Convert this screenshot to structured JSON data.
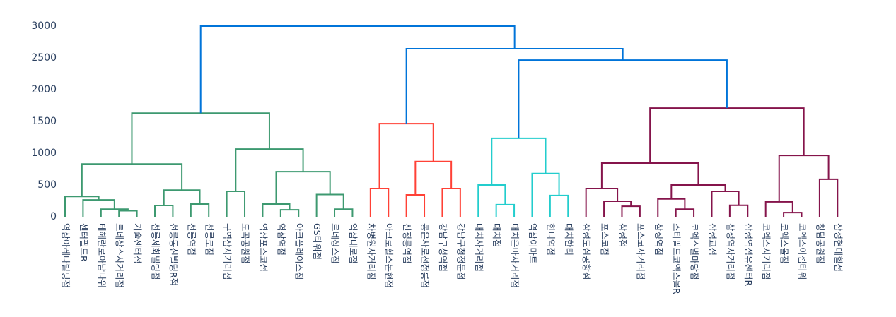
{
  "chart_data": {
    "type": "dendrogram",
    "xlim": [
      0,
      440
    ],
    "ylim": [
      0,
      3000
    ],
    "yticks": [
      0,
      500,
      1000,
      1500,
      2000,
      2500,
      3000
    ],
    "xticks": [
      {
        "value": 5,
        "label": "역삼아레나빌딩점"
      },
      {
        "value": 15,
        "label": "센터필드R"
      },
      {
        "value": 25,
        "label": "테헤란로아남타워"
      },
      {
        "value": 35,
        "label": "르네상스사거리점"
      },
      {
        "value": 45,
        "label": "기술센터점"
      },
      {
        "value": 55,
        "label": "선릉세화빌딩점"
      },
      {
        "value": 65,
        "label": "선릉동신빌딩R점"
      },
      {
        "value": 75,
        "label": "선릉역점"
      },
      {
        "value": 85,
        "label": "선릉로점"
      },
      {
        "value": 95,
        "label": "구역삼사거리점"
      },
      {
        "value": 105,
        "label": "도곡공원점"
      },
      {
        "value": 115,
        "label": "역삼포스코점"
      },
      {
        "value": 125,
        "label": "역삼역점"
      },
      {
        "value": 135,
        "label": "아크플레이스점"
      },
      {
        "value": 145,
        "label": "GS타워점"
      },
      {
        "value": 155,
        "label": "르네상스점"
      },
      {
        "value": 165,
        "label": "역삼대로점"
      },
      {
        "value": 175,
        "label": "차병원사거리점"
      },
      {
        "value": 185,
        "label": "아크로힐스논현점"
      },
      {
        "value": 195,
        "label": "선정릉역점"
      },
      {
        "value": 205,
        "label": "봉은사로선정릉점"
      },
      {
        "value": 215,
        "label": "강남구청역점"
      },
      {
        "value": 225,
        "label": "강남구청정문점"
      },
      {
        "value": 235,
        "label": "대치사거리점"
      },
      {
        "value": 245,
        "label": "대치점"
      },
      {
        "value": 255,
        "label": "대치은마사거리점"
      },
      {
        "value": 265,
        "label": "역삼이마트"
      },
      {
        "value": 275,
        "label": "한티역점"
      },
      {
        "value": 285,
        "label": "대치한티"
      },
      {
        "value": 295,
        "label": "삼성도심공항점"
      },
      {
        "value": 305,
        "label": "포스코점"
      },
      {
        "value": 315,
        "label": "삼성점"
      },
      {
        "value": 325,
        "label": "포스코사거리점"
      },
      {
        "value": 335,
        "label": "삼성역점"
      },
      {
        "value": 345,
        "label": "스타필드코엑스몰R"
      },
      {
        "value": 355,
        "label": "코엑스별마당점"
      },
      {
        "value": 365,
        "label": "삼성교점"
      },
      {
        "value": 375,
        "label": "삼성역사거리점"
      },
      {
        "value": 385,
        "label": "삼성역섬유센터R"
      },
      {
        "value": 395,
        "label": "코엑스사거리점"
      },
      {
        "value": 405,
        "label": "코엑스몰점"
      },
      {
        "value": 415,
        "label": "코엑스아셈타워"
      },
      {
        "value": 425,
        "label": "청담공원점"
      },
      {
        "value": 435,
        "label": "삼성현대힐점"
      }
    ],
    "links": [
      {
        "x": [
          35,
          35,
          45,
          45
        ],
        "y": [
          0,
          95,
          95,
          0
        ],
        "color": "#3d9970"
      },
      {
        "x": [
          25,
          25,
          40,
          40
        ],
        "y": [
          0,
          120,
          120,
          95
        ],
        "color": "#3d9970"
      },
      {
        "x": [
          15,
          15,
          32.5,
          32.5
        ],
        "y": [
          0,
          265,
          265,
          120
        ],
        "color": "#3d9970"
      },
      {
        "x": [
          5,
          5,
          23.75,
          23.75
        ],
        "y": [
          0,
          320,
          320,
          265
        ],
        "color": "#3d9970"
      },
      {
        "x": [
          55,
          55,
          65,
          65
        ],
        "y": [
          0,
          178,
          178,
          0
        ],
        "color": "#3d9970"
      },
      {
        "x": [
          75,
          75,
          85,
          85
        ],
        "y": [
          0,
          200,
          200,
          0
        ],
        "color": "#3d9970"
      },
      {
        "x": [
          60,
          60,
          80,
          80
        ],
        "y": [
          178,
          420,
          420,
          200
        ],
        "color": "#3d9970"
      },
      {
        "x": [
          14.375,
          14.375,
          70,
          70
        ],
        "y": [
          320,
          830,
          830,
          420
        ],
        "color": "#3d9970"
      },
      {
        "x": [
          95,
          95,
          105,
          105
        ],
        "y": [
          0,
          400,
          400,
          0
        ],
        "color": "#3d9970"
      },
      {
        "x": [
          125,
          125,
          135,
          135
        ],
        "y": [
          0,
          110,
          110,
          0
        ],
        "color": "#3d9970"
      },
      {
        "x": [
          115,
          115,
          130,
          130
        ],
        "y": [
          0,
          200,
          200,
          110
        ],
        "color": "#3d9970"
      },
      {
        "x": [
          155,
          155,
          165,
          165
        ],
        "y": [
          0,
          120,
          120,
          0
        ],
        "color": "#3d9970"
      },
      {
        "x": [
          145,
          145,
          160,
          160
        ],
        "y": [
          0,
          350,
          350,
          120
        ],
        "color": "#3d9970"
      },
      {
        "x": [
          122.5,
          122.5,
          152.5,
          152.5
        ],
        "y": [
          200,
          710,
          710,
          350
        ],
        "color": "#3d9970"
      },
      {
        "x": [
          100,
          100,
          137.5,
          137.5
        ],
        "y": [
          400,
          1065,
          1065,
          710
        ],
        "color": "#3d9970"
      },
      {
        "x": [
          42.1875,
          42.1875,
          118.75,
          118.75
        ],
        "y": [
          830,
          1630,
          1630,
          1065
        ],
        "color": "#3d9970"
      },
      {
        "x": [
          175,
          175,
          185,
          185
        ],
        "y": [
          0,
          445,
          445,
          0
        ],
        "color": "#ff4136"
      },
      {
        "x": [
          195,
          195,
          205,
          205
        ],
        "y": [
          0,
          345,
          345,
          0
        ],
        "color": "#ff4136"
      },
      {
        "x": [
          215,
          215,
          225,
          225
        ],
        "y": [
          0,
          445,
          445,
          0
        ],
        "color": "#ff4136"
      },
      {
        "x": [
          200,
          200,
          220,
          220
        ],
        "y": [
          345,
          870,
          870,
          445
        ],
        "color": "#ff4136"
      },
      {
        "x": [
          180,
          180,
          210,
          210
        ],
        "y": [
          445,
          1465,
          1465,
          870
        ],
        "color": "#ff4136"
      },
      {
        "x": [
          245,
          245,
          255,
          255
        ],
        "y": [
          0,
          190,
          190,
          0
        ],
        "color": "#23cdcd"
      },
      {
        "x": [
          235,
          235,
          250,
          250
        ],
        "y": [
          0,
          500,
          500,
          190
        ],
        "color": "#23cdcd"
      },
      {
        "x": [
          275,
          275,
          285,
          285
        ],
        "y": [
          0,
          335,
          335,
          0
        ],
        "color": "#23cdcd"
      },
      {
        "x": [
          265,
          265,
          280,
          280
        ],
        "y": [
          0,
          680,
          680,
          335
        ],
        "color": "#23cdcd"
      },
      {
        "x": [
          242.5,
          242.5,
          272.5,
          272.5
        ],
        "y": [
          500,
          1235,
          1235,
          680
        ],
        "color": "#23cdcd"
      },
      {
        "x": [
          315,
          315,
          325,
          325
        ],
        "y": [
          0,
          165,
          165,
          0
        ],
        "color": "#85144b"
      },
      {
        "x": [
          305,
          305,
          320,
          320
        ],
        "y": [
          0,
          245,
          245,
          165
        ],
        "color": "#85144b"
      },
      {
        "x": [
          295,
          295,
          312.5,
          312.5
        ],
        "y": [
          0,
          445,
          445,
          245
        ],
        "color": "#85144b"
      },
      {
        "x": [
          345,
          345,
          355,
          355
        ],
        "y": [
          0,
          120,
          120,
          0
        ],
        "color": "#85144b"
      },
      {
        "x": [
          335,
          335,
          350,
          350
        ],
        "y": [
          0,
          280,
          280,
          120
        ],
        "color": "#85144b"
      },
      {
        "x": [
          375,
          375,
          385,
          385
        ],
        "y": [
          0,
          180,
          180,
          0
        ],
        "color": "#85144b"
      },
      {
        "x": [
          365,
          365,
          380,
          380
        ],
        "y": [
          0,
          400,
          400,
          180
        ],
        "color": "#85144b"
      },
      {
        "x": [
          342.5,
          342.5,
          372.5,
          372.5
        ],
        "y": [
          280,
          500,
          500,
          400
        ],
        "color": "#85144b"
      },
      {
        "x": [
          303.75,
          303.75,
          357.5,
          357.5
        ],
        "y": [
          445,
          845,
          845,
          500
        ],
        "color": "#85144b"
      },
      {
        "x": [
          405,
          405,
          415,
          415
        ],
        "y": [
          0,
          65,
          65,
          0
        ],
        "color": "#85144b"
      },
      {
        "x": [
          395,
          395,
          410,
          410
        ],
        "y": [
          0,
          235,
          235,
          65
        ],
        "color": "#85144b"
      },
      {
        "x": [
          425,
          425,
          435,
          435
        ],
        "y": [
          0,
          590,
          590,
          0
        ],
        "color": "#85144b"
      },
      {
        "x": [
          402.5,
          402.5,
          430,
          430
        ],
        "y": [
          235,
          965,
          965,
          590
        ],
        "color": "#85144b"
      },
      {
        "x": [
          330.625,
          330.625,
          416.25,
          416.25
        ],
        "y": [
          845,
          1710,
          1710,
          965
        ],
        "color": "#85144b"
      },
      {
        "x": [
          257.5,
          257.5,
          373.4375,
          373.4375
        ],
        "y": [
          1235,
          2465,
          2465,
          1710
        ],
        "color": "#0074d9"
      },
      {
        "x": [
          195,
          195,
          315.46875,
          315.46875
        ],
        "y": [
          1465,
          2645,
          2645,
          2465
        ],
        "color": "#0074d9"
      },
      {
        "x": [
          80.46875,
          80.46875,
          255.234375,
          255.234375
        ],
        "y": [
          1630,
          3000,
          3000,
          2645
        ],
        "color": "#0074d9"
      }
    ]
  }
}
